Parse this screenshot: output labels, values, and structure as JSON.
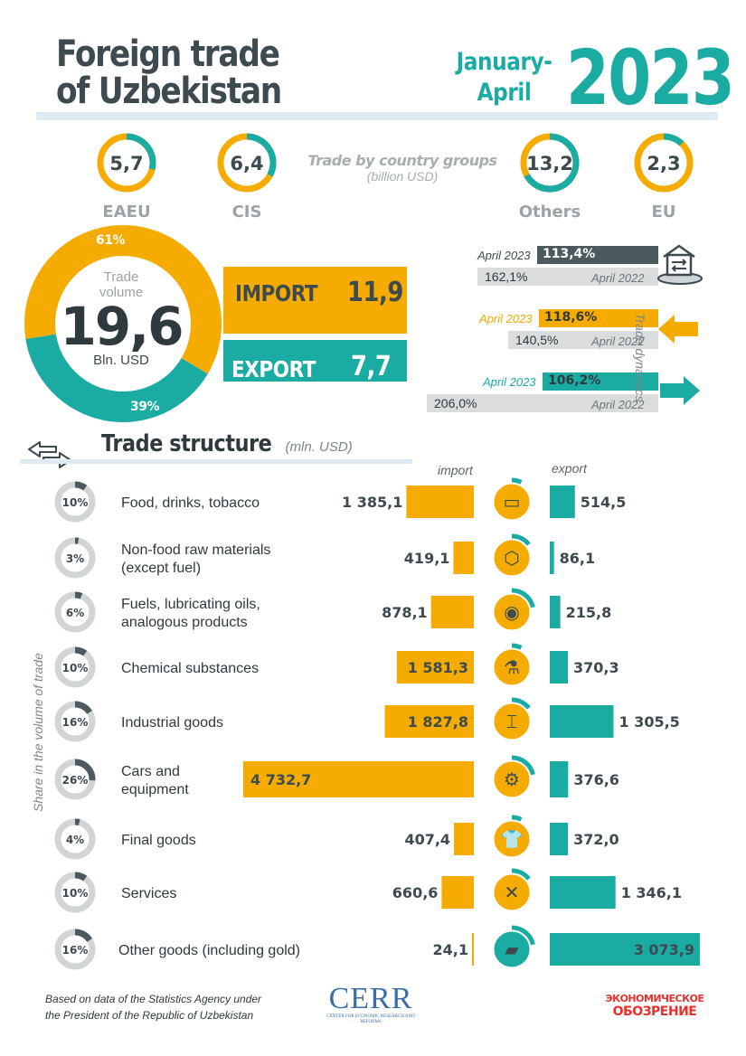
{
  "header": {
    "title_line1": "Foreign trade",
    "title_line2": "of Uzbekistan",
    "period_line1": "January-",
    "period_line2": "April",
    "year": "2023"
  },
  "country_groups": {
    "label": "Trade by country groups",
    "unit": "(billion USD)",
    "items": [
      {
        "name": "EAEU",
        "value": "5,7",
        "share": 0.29
      },
      {
        "name": "CIS",
        "value": "6,4",
        "share": 0.33
      },
      {
        "name": "Others",
        "value": "13,2",
        "share": 0.67
      },
      {
        "name": "EU",
        "value": "2,3",
        "share": 0.12
      }
    ]
  },
  "trade_volume": {
    "label_line1": "Trade",
    "label_line2": "volume",
    "value": "19,6",
    "unit": "Bln. USD",
    "import_pct": "61%",
    "export_pct": "39%",
    "import_label": "IMPORT",
    "import_value": "11,9",
    "export_label": "EXPORT",
    "export_value": "7,7"
  },
  "dynamics": {
    "side_label": "Trade dynamics",
    "rows": [
      {
        "kind": "total",
        "label_2023": "April 2023",
        "value_2023": "113,4%",
        "label_2022": "April 2022",
        "value_2022": "162,1%",
        "color": "#4a5a5f"
      },
      {
        "kind": "import",
        "label_2023": "April 2023",
        "value_2023": "118,6%",
        "label_2022": "April 2022",
        "value_2022": "140,5%",
        "color": "#f5ab00"
      },
      {
        "kind": "export",
        "label_2023": "April 2023",
        "value_2023": "106,2%",
        "label_2022": "April 2022",
        "value_2022": "206,0%",
        "color": "#1aaba3"
      }
    ]
  },
  "structure": {
    "title": "Trade structure",
    "unit": "(mln. USD)",
    "import_header": "import",
    "export_header": "export",
    "side_label": "Share in the volume of trade"
  },
  "chart_data": {
    "type": "bar",
    "title": "Trade structure",
    "categories": [
      "Food, drinks, tobacco",
      "Non-food raw materials (except fuel)",
      "Fuels, lubricating oils, analogous products",
      "Chemical substances",
      "Industrial goods",
      "Cars and equipment",
      "Final goods",
      "Services",
      "Other goods (including gold)"
    ],
    "label_lines": [
      [
        "Food, drinks, tobacco"
      ],
      [
        "Non-food raw materials",
        "(except fuel)"
      ],
      [
        "Fuels, lubricating oils,",
        "analogous products"
      ],
      [
        "Chemical substances"
      ],
      [
        "Industrial goods"
      ],
      [
        "Cars and",
        "equipment"
      ],
      [
        "Final goods"
      ],
      [
        "Services"
      ],
      [
        "Other goods (including gold)"
      ]
    ],
    "shares": [
      "10%",
      "3%",
      "6%",
      "10%",
      "16%",
      "26%",
      "4%",
      "10%",
      "16%"
    ],
    "share_values": [
      10,
      3,
      6,
      10,
      16,
      26,
      4,
      10,
      16
    ],
    "icons": [
      "food-icon",
      "box-icon",
      "fuel-barrel-icon",
      "flask-icon",
      "steel-beam-icon",
      "gears-icon",
      "tshirt-icon",
      "tools-icon",
      "gold-bar-icon"
    ],
    "series": [
      {
        "name": "import",
        "values": [
          1385.1,
          419.1,
          878.1,
          1581.3,
          1827.8,
          4732.7,
          407.4,
          660.6,
          24.1
        ],
        "labels": [
          "1 385,1",
          "419,1",
          "878,1",
          "1 581,3",
          "1 827,8",
          "4 732,7",
          "407,4",
          "660,6",
          "24,1"
        ],
        "color": "#f5ab00"
      },
      {
        "name": "export",
        "values": [
          514.5,
          86.1,
          215.8,
          370.3,
          1305.5,
          376.6,
          372.0,
          1346.1,
          3073.9
        ],
        "labels": [
          "514,5",
          "86,1",
          "215,8",
          "370,3",
          "1 305,5",
          "376,6",
          "372,0",
          "1 346,1",
          "3 073,9"
        ],
        "color": "#1aaba3"
      }
    ]
  },
  "footer": {
    "source_line1": "Based on data of the Statistics Agency under",
    "source_line2": "the President of the Republic of Uzbekistan",
    "logo_cerr": "CERR",
    "logo_cerr_sub": "CENTER FOR ECONOMIC RESEARCH AND REFORMS",
    "logo_eo_line1": "ЭКОНОМИЧЕСКОЕ",
    "logo_eo_line2": "ОБОЗРЕНИЕ"
  }
}
